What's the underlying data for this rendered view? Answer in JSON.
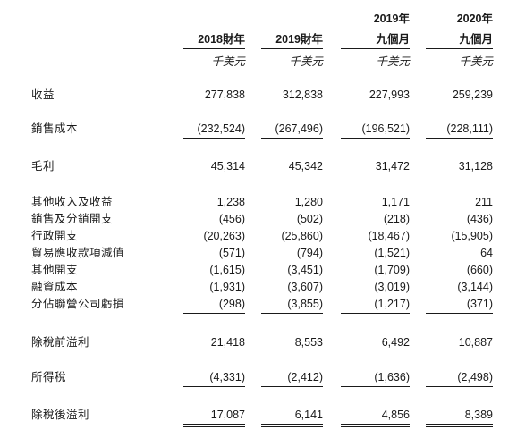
{
  "header": {
    "columns": [
      {
        "line1": "",
        "line2": "2018財年",
        "unit": "千美元"
      },
      {
        "line1": "",
        "line2": "2019財年",
        "unit": "千美元"
      },
      {
        "line1": "2019年",
        "line2": "九個月",
        "unit": "千美元"
      },
      {
        "line1": "2020年",
        "line2": "九個月",
        "unit": "千美元"
      }
    ]
  },
  "rows": [
    {
      "label": "收益",
      "values": [
        "277,838",
        "312,838",
        "227,993",
        "259,239"
      ]
    },
    {
      "label": "銷售成本",
      "values": [
        "(232,524)",
        "(267,496)",
        "(196,521)",
        "(228,111)"
      ]
    },
    {
      "label": "毛利",
      "values": [
        "45,314",
        "45,342",
        "31,472",
        "31,128"
      ]
    },
    {
      "label": "其他收入及收益",
      "values": [
        "1,238",
        "1,280",
        "1,171",
        "211"
      ]
    },
    {
      "label": "銷售及分銷開支",
      "values": [
        "(456)",
        "(502)",
        "(218)",
        "(436)"
      ]
    },
    {
      "label": "行政開支",
      "values": [
        "(20,263)",
        "(25,860)",
        "(18,467)",
        "(15,905)"
      ]
    },
    {
      "label": "貿易應收款項減值",
      "values": [
        "(571)",
        "(794)",
        "(1,521)",
        "64"
      ]
    },
    {
      "label": "其他開支",
      "values": [
        "(1,615)",
        "(3,451)",
        "(1,709)",
        "(660)"
      ]
    },
    {
      "label": "融資成本",
      "values": [
        "(1,931)",
        "(3,607)",
        "(3,019)",
        "(3,144)"
      ]
    },
    {
      "label": "分佔聯營公司虧損",
      "values": [
        "(298)",
        "(3,855)",
        "(1,217)",
        "(371)"
      ]
    },
    {
      "label": "除稅前溢利",
      "values": [
        "21,418",
        "8,553",
        "6,492",
        "10,887"
      ]
    },
    {
      "label": "所得稅",
      "values": [
        "(4,331)",
        "(2,412)",
        "(1,636)",
        "(2,498)"
      ]
    },
    {
      "label": "除稅後溢利",
      "values": [
        "17,087",
        "6,141",
        "4,856",
        "8,389"
      ]
    }
  ]
}
